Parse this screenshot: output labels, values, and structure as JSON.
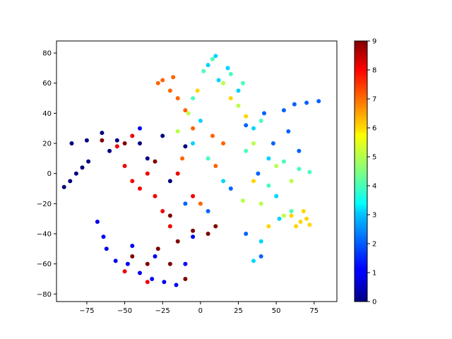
{
  "chart_data": {
    "type": "scatter",
    "title": "",
    "xlabel": "",
    "ylabel": "",
    "xlim": [
      -95,
      90
    ],
    "ylim": [
      -85,
      88
    ],
    "x_ticks": [
      -75,
      -50,
      -25,
      0,
      25,
      50,
      75
    ],
    "y_ticks": [
      -80,
      -60,
      -40,
      -20,
      0,
      20,
      40,
      60,
      80
    ],
    "grid": false,
    "colormap": "jet",
    "colorbar": {
      "min": 0,
      "max": 9,
      "ticks": [
        0,
        1,
        2,
        3,
        4,
        5,
        6,
        7,
        8,
        9
      ]
    },
    "clusters": [
      {
        "label": 0,
        "points": [
          [
            -90,
            -9
          ],
          [
            -86,
            -5
          ],
          [
            -82,
            0
          ],
          [
            -78,
            4
          ],
          [
            -74,
            8
          ],
          [
            -85,
            20
          ],
          [
            -75,
            22
          ],
          [
            -65,
            27
          ],
          [
            -55,
            22
          ],
          [
            -60,
            15
          ],
          [
            -40,
            20
          ],
          [
            -25,
            25
          ],
          [
            -10,
            18
          ],
          [
            -20,
            -5
          ],
          [
            -35,
            10
          ]
        ]
      },
      {
        "label": 1,
        "points": [
          [
            -68,
            -32
          ],
          [
            -64,
            -42
          ],
          [
            -62,
            -50
          ],
          [
            -56,
            -58
          ],
          [
            -48,
            -60
          ],
          [
            -40,
            -66
          ],
          [
            -32,
            -70
          ],
          [
            -24,
            -72
          ],
          [
            -16,
            -74
          ],
          [
            -30,
            -55
          ],
          [
            -45,
            -48
          ],
          [
            -10,
            -60
          ],
          [
            -5,
            -42
          ],
          [
            -40,
            30
          ]
        ]
      },
      {
        "label": 2,
        "points": [
          [
            55,
            42
          ],
          [
            62,
            46
          ],
          [
            70,
            47
          ],
          [
            78,
            48
          ],
          [
            42,
            40
          ],
          [
            30,
            32
          ],
          [
            48,
            20
          ],
          [
            58,
            28
          ],
          [
            65,
            15
          ],
          [
            38,
            0
          ],
          [
            20,
            -10
          ],
          [
            5,
            -25
          ],
          [
            30,
            -40
          ],
          [
            40,
            -55
          ],
          [
            -10,
            -20
          ]
        ]
      },
      {
        "label": 3,
        "points": [
          [
            10,
            78
          ],
          [
            5,
            72
          ],
          [
            18,
            70
          ],
          [
            12,
            62
          ],
          [
            25,
            55
          ],
          [
            35,
            30
          ],
          [
            45,
            10
          ],
          [
            50,
            -15
          ],
          [
            40,
            -45
          ],
          [
            35,
            -58
          ],
          [
            15,
            -5
          ],
          [
            0,
            35
          ],
          [
            -5,
            20
          ],
          [
            52,
            -30
          ]
        ]
      },
      {
        "label": 4,
        "points": [
          [
            8,
            76
          ],
          [
            2,
            68
          ],
          [
            20,
            66
          ],
          [
            28,
            60
          ],
          [
            40,
            35
          ],
          [
            55,
            8
          ],
          [
            65,
            3
          ],
          [
            72,
            1
          ],
          [
            45,
            -8
          ],
          [
            30,
            15
          ],
          [
            60,
            -25
          ],
          [
            5,
            10
          ],
          [
            -5,
            50
          ]
        ]
      },
      {
        "label": 5,
        "points": [
          [
            15,
            60
          ],
          [
            25,
            45
          ],
          [
            35,
            20
          ],
          [
            50,
            5
          ],
          [
            60,
            -5
          ],
          [
            28,
            -18
          ],
          [
            -8,
            40
          ],
          [
            -15,
            28
          ],
          [
            10,
            -35
          ],
          [
            40,
            -20
          ],
          [
            55,
            -28
          ]
        ]
      },
      {
        "label": 6,
        "points": [
          [
            60,
            -28
          ],
          [
            66,
            -32
          ],
          [
            70,
            -30
          ],
          [
            63,
            -35
          ],
          [
            68,
            -25
          ],
          [
            72,
            -34
          ],
          [
            20,
            50
          ],
          [
            30,
            38
          ],
          [
            35,
            -5
          ],
          [
            45,
            -35
          ],
          [
            -2,
            55
          ]
        ]
      },
      {
        "label": 7,
        "points": [
          [
            -25,
            62
          ],
          [
            -20,
            55
          ],
          [
            -15,
            50
          ],
          [
            -28,
            60
          ],
          [
            -18,
            64
          ],
          [
            -10,
            42
          ],
          [
            -5,
            30
          ],
          [
            8,
            25
          ],
          [
            15,
            20
          ],
          [
            -12,
            10
          ],
          [
            0,
            -20
          ],
          [
            10,
            5
          ]
        ]
      },
      {
        "label": 8,
        "points": [
          [
            -50,
            5
          ],
          [
            -45,
            -5
          ],
          [
            -40,
            -10
          ],
          [
            -35,
            0
          ],
          [
            -55,
            18
          ],
          [
            -45,
            25
          ],
          [
            -30,
            -15
          ],
          [
            -25,
            -25
          ],
          [
            -20,
            -35
          ],
          [
            -50,
            -65
          ],
          [
            -35,
            -72
          ],
          [
            -15,
            0
          ],
          [
            -5,
            -15
          ]
        ]
      },
      {
        "label": 9,
        "points": [
          [
            -65,
            22
          ],
          [
            -50,
            20
          ],
          [
            -30,
            8
          ],
          [
            -20,
            -28
          ],
          [
            -15,
            -45
          ],
          [
            -5,
            -38
          ],
          [
            5,
            -40
          ],
          [
            10,
            -35
          ],
          [
            -28,
            -50
          ],
          [
            -20,
            -60
          ],
          [
            -35,
            -60
          ],
          [
            -45,
            -55
          ],
          [
            -10,
            -70
          ]
        ]
      }
    ]
  }
}
